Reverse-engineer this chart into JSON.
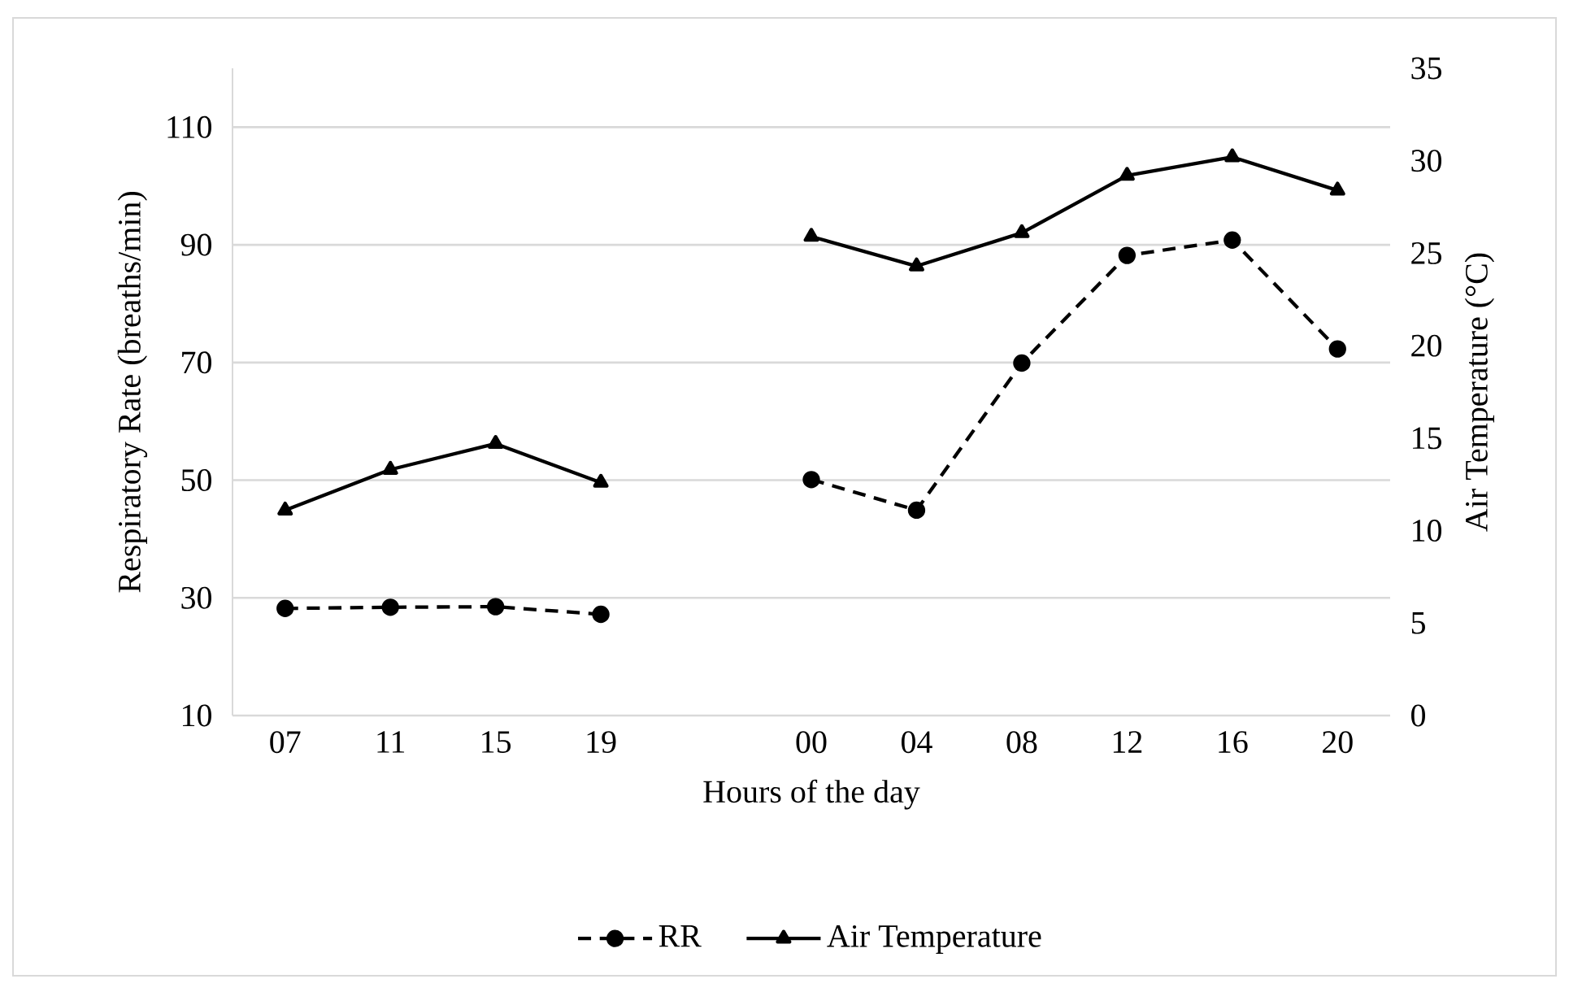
{
  "chart_data": {
    "type": "line",
    "xlabel": "Hours of the day",
    "ylabel": "Respiratory Rate (breaths/min)",
    "y2label": "Air Temperature (°C)",
    "categories": [
      "07",
      "11",
      "15",
      "19",
      null,
      "00",
      "04",
      "08",
      "12",
      "16",
      "20"
    ],
    "series": [
      {
        "name": "RR",
        "color": "#000000",
        "marker": "circle",
        "line_style": "dashed",
        "values": [
          28.2,
          28.4,
          28.5,
          27.2,
          null,
          50.1,
          44.9,
          69.9,
          88.2,
          90.8,
          72.3
        ]
      },
      {
        "name": "Air Temperature",
        "color": "#000000",
        "marker": "triangle",
        "line_style": "solid",
        "axis": "y2",
        "values": [
          11.1,
          13.3,
          14.7,
          12.6,
          null,
          25.9,
          24.3,
          26.1,
          29.2,
          30.2,
          28.4
        ]
      }
    ],
    "ylim": [
      10,
      120
    ],
    "yticks": [
      10,
      30,
      50,
      70,
      90,
      110
    ],
    "y2lim": [
      0,
      35
    ],
    "y2ticks": [
      0,
      5,
      10,
      15,
      20,
      25,
      30,
      35
    ],
    "grid": "y",
    "legend": "bottom"
  }
}
